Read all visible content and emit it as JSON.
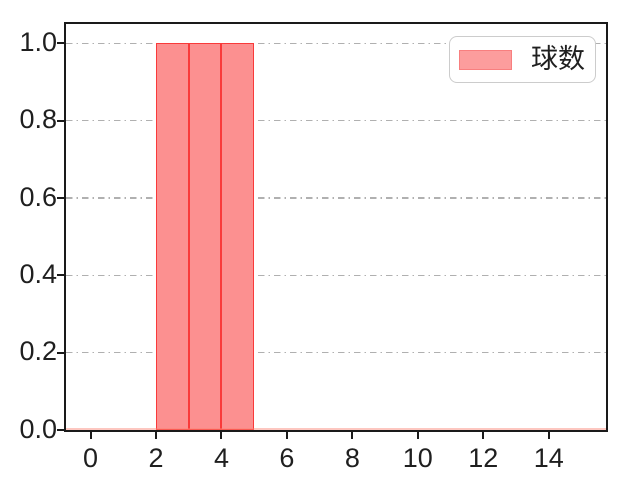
{
  "figure": {
    "background": "#ffffff"
  },
  "legend": {
    "label": "球数",
    "swatch_fill": "#fc9d9d",
    "swatch_edge": "#f87f7f",
    "position": "upper right"
  },
  "chart_data": {
    "type": "bar",
    "subtype": "histogram",
    "title": "",
    "xlabel": "",
    "ylabel": "",
    "series": [
      {
        "name": "球数",
        "bin_edges": [
          2,
          3,
          4,
          5
        ],
        "counts": [
          1,
          1,
          1
        ],
        "fill": "#fc9090",
        "edge": "#f93a3a"
      }
    ],
    "x_ticks": [
      {
        "value": 0,
        "label": "0"
      },
      {
        "value": 2,
        "label": "2"
      },
      {
        "value": 4,
        "label": "4"
      },
      {
        "value": 6,
        "label": "6"
      },
      {
        "value": 8,
        "label": "8"
      },
      {
        "value": 10,
        "label": "10"
      },
      {
        "value": 12,
        "label": "12"
      },
      {
        "value": 14,
        "label": "14"
      }
    ],
    "y_ticks": [
      {
        "value": 0.0,
        "label": "0.0"
      },
      {
        "value": 0.2,
        "label": "0.2"
      },
      {
        "value": 0.4,
        "label": "0.4"
      },
      {
        "value": 0.6,
        "label": "0.6"
      },
      {
        "value": 0.8,
        "label": "0.8"
      },
      {
        "value": 1.0,
        "label": "1.0"
      }
    ],
    "xlim": [
      -0.75,
      15.75
    ],
    "ylim": [
      0,
      1.05
    ],
    "grid": {
      "axis": "y",
      "style": "dash-dot",
      "color": "#b0b0b0"
    },
    "baseline_color": "rgba(250,130,115,0.45)",
    "legend_position": "upper right"
  }
}
